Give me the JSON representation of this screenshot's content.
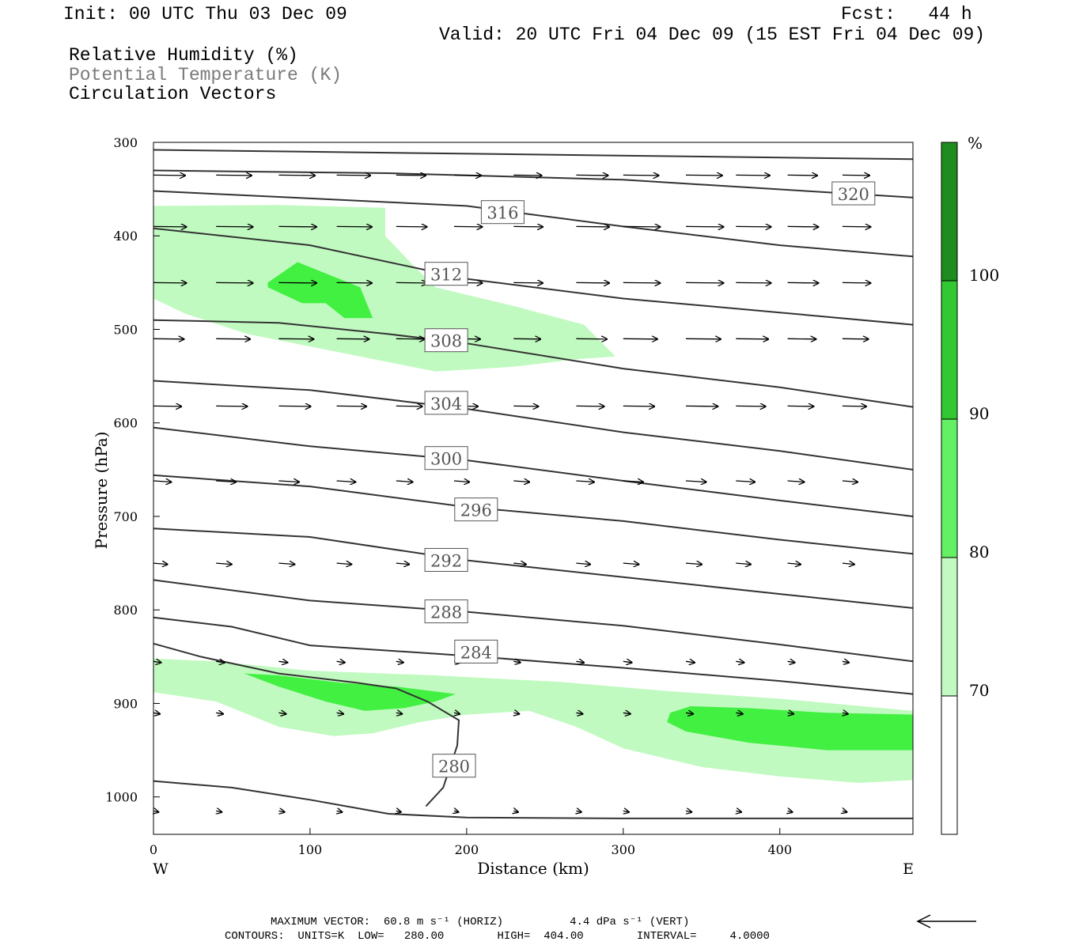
{
  "header": {
    "init": "Init: 00 UTC Thu 03 Dec 09",
    "fcst": "Fcst:   44 h",
    "valid": "Valid: 20 UTC Fri 04 Dec 09 (15 EST Fri 04 Dec 09)",
    "field1": "Relative Humidity (%)",
    "field2": "Potential Temperature (K)",
    "field3": "Circulation Vectors"
  },
  "axes": {
    "xlabel": "Distance (km)",
    "ylabel": "Pressure (hPa)",
    "west": "W",
    "east": "E"
  },
  "footer": {
    "maxvec": "MAXIMUM VECTOR:  60.8 m s⁻¹ (HORIZ)          4.4 dPa s⁻¹ (VERT)",
    "contours": "CONTOURS:  UNITS=K  LOW=   280.00        HIGH=  404.00        INTERVAL=     4.0000"
  },
  "colorbar": {
    "unit": "%",
    "levels": [
      70,
      80,
      90,
      100
    ],
    "colors": [
      "#ffffff",
      "#c0fac0",
      "#64f064",
      "#32c832",
      "#1e8c1e"
    ]
  },
  "chart_data": {
    "type": "contour",
    "xlim": [
      0,
      485
    ],
    "ylim": [
      300,
      1040
    ],
    "y_log": false,
    "xticks": [
      0,
      100,
      200,
      300,
      400
    ],
    "yticks": [
      300,
      400,
      500,
      600,
      700,
      800,
      900,
      1000
    ],
    "rh_fill_colors": {
      "70": "#c0fac0",
      "80": "#42f042"
    },
    "rh_regions": [
      {
        "level": 70,
        "points": [
          [
            0,
            368
          ],
          [
            80,
            367
          ],
          [
            148,
            370
          ],
          [
            148,
            400
          ],
          [
            165,
            430
          ],
          [
            180,
            455
          ],
          [
            230,
            475
          ],
          [
            275,
            495
          ],
          [
            295,
            529
          ],
          [
            270,
            532
          ],
          [
            230,
            540
          ],
          [
            180,
            545
          ],
          [
            120,
            525
          ],
          [
            60,
            505
          ],
          [
            20,
            483
          ],
          [
            0,
            467
          ]
        ]
      },
      {
        "level": 80,
        "points": [
          [
            73,
            450
          ],
          [
            92,
            428
          ],
          [
            132,
            455
          ],
          [
            140,
            488
          ],
          [
            122,
            488
          ],
          [
            110,
            472
          ],
          [
            95,
            472
          ],
          [
            73,
            455
          ]
        ]
      },
      {
        "level": 70,
        "points": [
          [
            0,
            852
          ],
          [
            40,
            855
          ],
          [
            100,
            865
          ],
          [
            180,
            870
          ],
          [
            260,
            877
          ],
          [
            330,
            887
          ],
          [
            400,
            895
          ],
          [
            485,
            908
          ],
          [
            485,
            982
          ],
          [
            450,
            985
          ],
          [
            400,
            978
          ],
          [
            350,
            968
          ],
          [
            300,
            948
          ],
          [
            270,
            925
          ],
          [
            240,
            908
          ],
          [
            200,
            912
          ],
          [
            170,
            920
          ],
          [
            140,
            932
          ],
          [
            115,
            935
          ],
          [
            80,
            925
          ],
          [
            40,
            898
          ],
          [
            0,
            888
          ]
        ]
      },
      {
        "level": 80,
        "points": [
          [
            58,
            868
          ],
          [
            80,
            870
          ],
          [
            120,
            878
          ],
          [
            155,
            882
          ],
          [
            193,
            890
          ],
          [
            180,
            898
          ],
          [
            160,
            905
          ],
          [
            135,
            908
          ],
          [
            110,
            898
          ],
          [
            80,
            882
          ]
        ]
      },
      {
        "level": 80,
        "points": [
          [
            330,
            910
          ],
          [
            343,
            903
          ],
          [
            380,
            905
          ],
          [
            430,
            910
          ],
          [
            485,
            912
          ],
          [
            485,
            950
          ],
          [
            430,
            950
          ],
          [
            380,
            942
          ],
          [
            340,
            930
          ],
          [
            328,
            920
          ]
        ]
      }
    ],
    "theta_contours": [
      {
        "label": "",
        "points": [
          [
            0,
            308
          ],
          [
            485,
            318
          ]
        ]
      },
      {
        "label": "320",
        "label_at": [
          447,
          355
        ],
        "points": [
          [
            0,
            330
          ],
          [
            150,
            333
          ],
          [
            300,
            340
          ],
          [
            485,
            359
          ]
        ]
      },
      {
        "label": "316",
        "label_at": [
          223,
          375
        ],
        "points": [
          [
            0,
            352
          ],
          [
            100,
            360
          ],
          [
            200,
            368
          ],
          [
            300,
            390
          ],
          [
            400,
            410
          ],
          [
            485,
            422
          ]
        ]
      },
      {
        "label": "312",
        "label_at": [
          187,
          441
        ],
        "points": [
          [
            0,
            392
          ],
          [
            100,
            410
          ],
          [
            200,
            446
          ],
          [
            300,
            467
          ],
          [
            400,
            482
          ],
          [
            485,
            495
          ]
        ]
      },
      {
        "label": "308",
        "label_at": [
          187,
          512
        ],
        "points": [
          [
            0,
            490
          ],
          [
            80,
            493
          ],
          [
            150,
            505
          ],
          [
            200,
            515
          ],
          [
            300,
            542
          ],
          [
            400,
            562
          ],
          [
            485,
            583
          ]
        ]
      },
      {
        "label": "304",
        "label_at": [
          187,
          579
        ],
        "points": [
          [
            0,
            555
          ],
          [
            100,
            565
          ],
          [
            200,
            585
          ],
          [
            300,
            610
          ],
          [
            400,
            630
          ],
          [
            485,
            650
          ]
        ]
      },
      {
        "label": "300",
        "label_at": [
          187,
          638
        ],
        "points": [
          [
            0,
            605
          ],
          [
            100,
            625
          ],
          [
            200,
            640
          ],
          [
            300,
            662
          ],
          [
            400,
            683
          ],
          [
            485,
            700
          ]
        ]
      },
      {
        "label": "296",
        "label_at": [
          206,
          693
        ],
        "points": [
          [
            0,
            656
          ],
          [
            100,
            668
          ],
          [
            200,
            690
          ],
          [
            300,
            705
          ],
          [
            400,
            725
          ],
          [
            485,
            740
          ]
        ]
      },
      {
        "label": "292",
        "label_at": [
          187,
          747
        ],
        "points": [
          [
            0,
            713
          ],
          [
            100,
            722
          ],
          [
            200,
            747
          ],
          [
            300,
            765
          ],
          [
            400,
            783
          ],
          [
            485,
            798
          ]
        ]
      },
      {
        "label": "288",
        "label_at": [
          187,
          802
        ],
        "points": [
          [
            0,
            768
          ],
          [
            100,
            790
          ],
          [
            200,
            802
          ],
          [
            300,
            817
          ],
          [
            400,
            837
          ],
          [
            485,
            855
          ]
        ]
      },
      {
        "label": "284",
        "label_at": [
          206,
          845
        ],
        "points": [
          [
            0,
            808
          ],
          [
            50,
            818
          ],
          [
            100,
            838
          ],
          [
            200,
            849
          ],
          [
            300,
            862
          ],
          [
            400,
            876
          ],
          [
            485,
            890
          ]
        ]
      },
      {
        "label": "280",
        "label_at": [
          192,
          967
        ],
        "points": [
          [
            0,
            983
          ],
          [
            50,
            990
          ],
          [
            100,
            1003
          ],
          [
            150,
            1018
          ],
          [
            200,
            1022
          ],
          [
            300,
            1023
          ],
          [
            485,
            1023
          ]
        ]
      }
    ],
    "theta_280_bend": [
      [
        0,
        836
      ],
      [
        30,
        850
      ],
      [
        80,
        868
      ],
      [
        130,
        878
      ],
      [
        155,
        884
      ],
      [
        175,
        898
      ],
      [
        195,
        918
      ],
      [
        194,
        945
      ],
      [
        185,
        990
      ],
      [
        174,
        1010
      ]
    ],
    "vector_rows": [
      {
        "p": 335,
        "x": [
          0,
          40,
          80,
          117,
          155,
          192,
          230,
          270,
          300,
          340,
          372,
          405,
          440
        ],
        "len": 25
      },
      {
        "p": 390,
        "x": [
          0,
          40,
          80,
          117,
          155,
          192,
          230,
          270,
          300,
          340,
          372,
          405,
          440
        ],
        "len": 26
      },
      {
        "p": 450,
        "x": [
          0,
          40,
          80,
          117,
          155,
          192,
          230,
          270,
          300,
          340,
          372,
          405,
          440
        ],
        "len": 26
      },
      {
        "p": 510,
        "x": [
          0,
          40,
          80,
          117,
          155,
          192,
          230,
          270,
          300,
          340,
          372,
          405,
          440
        ],
        "len": 24
      },
      {
        "p": 582,
        "x": [
          0,
          40,
          80,
          117,
          155,
          192,
          230,
          270,
          300,
          340,
          372,
          405,
          440
        ],
        "len": 22
      },
      {
        "p": 662,
        "x": [
          0,
          40,
          80,
          117,
          155,
          192,
          230,
          270,
          300,
          340,
          372,
          405,
          440
        ],
        "len": 14
      },
      {
        "p": 750,
        "x": [
          0,
          40,
          80,
          117,
          155,
          192,
          230,
          270,
          300,
          340,
          372,
          405,
          440
        ],
        "len": 11
      },
      {
        "p": 855,
        "x": [
          0,
          40,
          80,
          117,
          155,
          192,
          230,
          270,
          300,
          340,
          372,
          405,
          440
        ],
        "len": 6
      },
      {
        "p": 910,
        "x": [
          0,
          40,
          80,
          117,
          155,
          192,
          230,
          270,
          300,
          340,
          372,
          405,
          440
        ],
        "len": 5
      },
      {
        "p": 1015,
        "x": [
          0,
          40,
          80,
          117,
          155,
          192,
          230,
          270,
          300,
          340,
          372,
          405,
          440
        ],
        "len": 4
      }
    ]
  }
}
